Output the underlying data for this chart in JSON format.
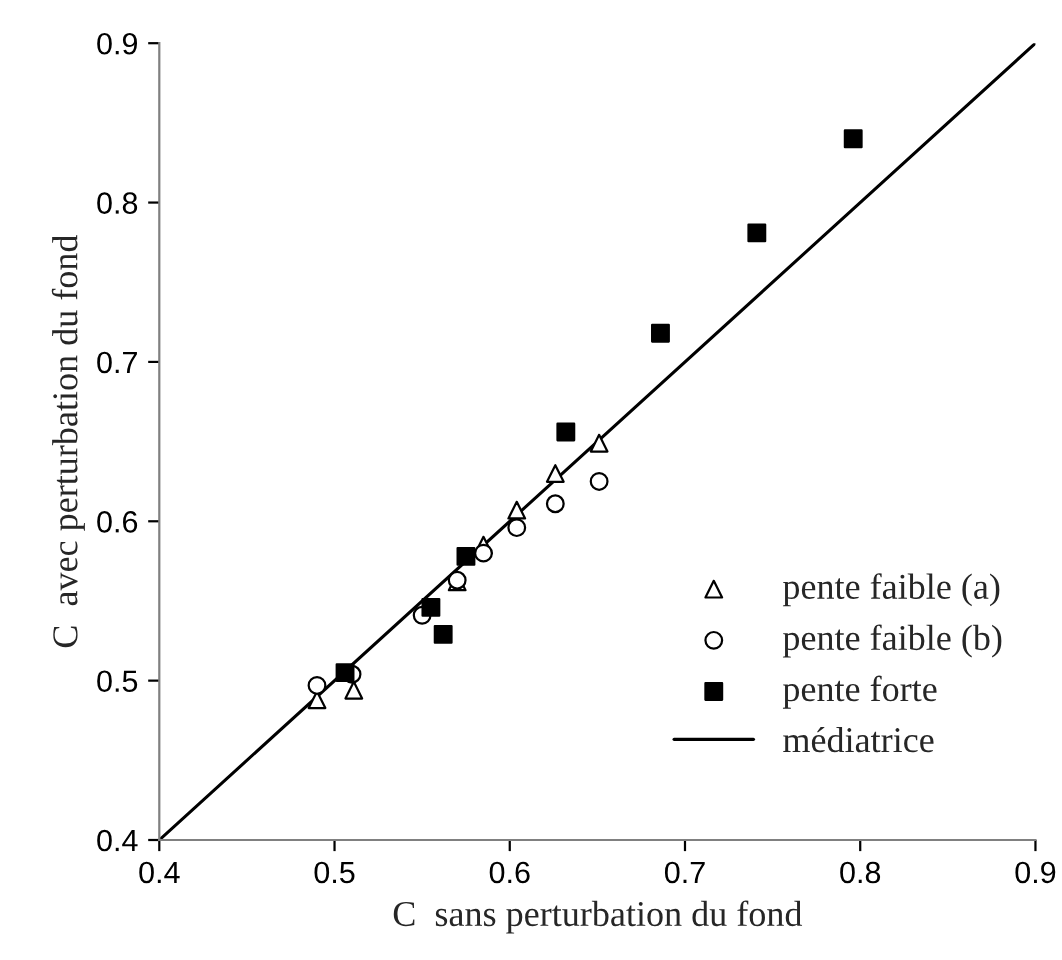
{
  "chart_data": {
    "type": "scatter",
    "xlabel": "C  sans perturbation du fond",
    "ylabel": "C  avec perturbation du fond",
    "xlim": [
      0.4,
      0.9
    ],
    "ylim": [
      0.4,
      0.9
    ],
    "xticks": [
      0.4,
      0.5,
      0.6,
      0.7,
      0.8,
      0.9
    ],
    "yticks": [
      0.4,
      0.5,
      0.6,
      0.7,
      0.8,
      0.9
    ],
    "grid": false,
    "legend": "bottom right",
    "series": [
      {
        "name": "pente faible (a)",
        "color": "#000000",
        "marker": "triangle",
        "x": [
          0.49,
          0.511,
          0.57,
          0.585,
          0.604,
          0.626,
          0.651
        ],
        "values": [
          0.488,
          0.494,
          0.562,
          0.585,
          0.607,
          0.63,
          0.649
        ]
      },
      {
        "name": "pente faible (b)",
        "color": "#000000",
        "marker": "circle",
        "x": [
          0.49,
          0.51,
          0.55,
          0.57,
          0.585,
          0.604,
          0.626,
          0.651
        ],
        "values": [
          0.497,
          0.504,
          0.541,
          0.563,
          0.58,
          0.596,
          0.611,
          0.625
        ]
      },
      {
        "name": "pente forte",
        "color": "#000000",
        "marker": "square",
        "x": [
          0.506,
          0.555,
          0.562,
          0.575,
          0.632,
          0.686,
          0.741,
          0.796
        ],
        "values": [
          0.505,
          0.546,
          0.529,
          0.578,
          0.656,
          0.718,
          0.781,
          0.84
        ]
      },
      {
        "name": "médiatrice",
        "color": "#000000",
        "type": "line",
        "marker": "none",
        "line_style": "solid",
        "x": [
          0.4,
          0.9
        ],
        "values": [
          0.4,
          0.9
        ]
      }
    ]
  }
}
